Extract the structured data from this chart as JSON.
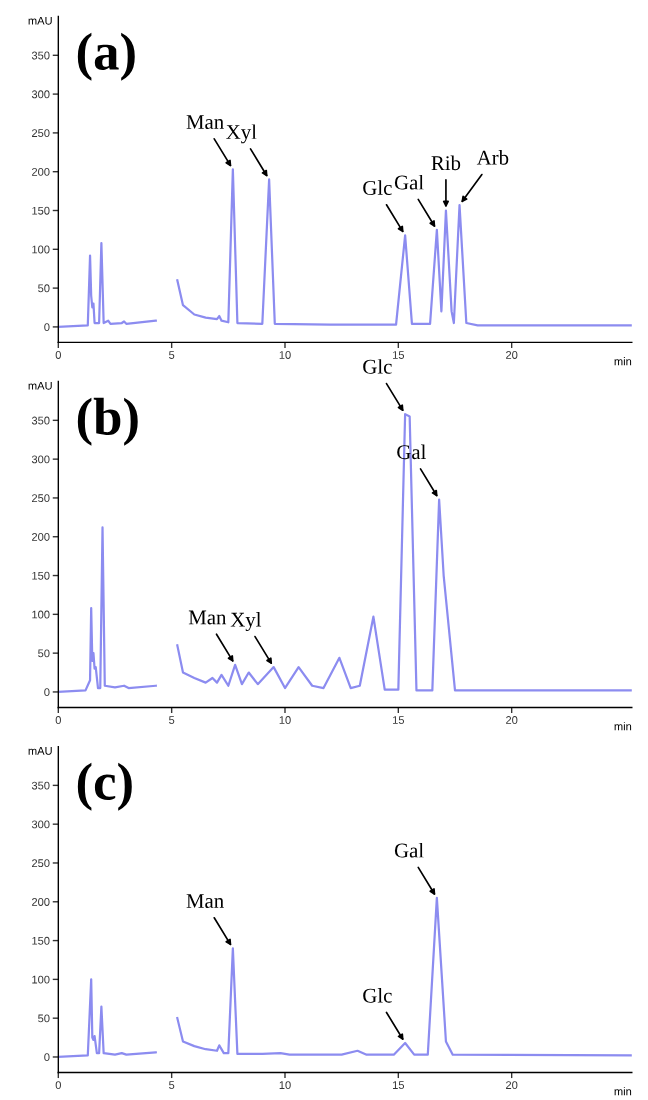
{
  "chart_data": [
    {
      "type": "line",
      "title": "(a)",
      "xlabel": "min",
      "ylabel": "mAU",
      "xlim": [
        0,
        25.3
      ],
      "ylim": [
        -20,
        400
      ],
      "xticks": [
        0,
        5,
        10,
        15,
        20
      ],
      "yticks": [
        0,
        50,
        100,
        150,
        200,
        250,
        300,
        350
      ],
      "grid": false,
      "legend": false,
      "line_style": "solid",
      "marker": "none",
      "series": [
        {
          "color": "#8c8cf0",
          "x": [
            0,
            1.3,
            1.4,
            1.45,
            1.5,
            1.55,
            1.6,
            1.8,
            1.9,
            2.0,
            2.2,
            2.3,
            2.8,
            2.9,
            3.0,
            4.3,
            4.45,
            4.55,
            5.15,
            5.25,
            5.5,
            6.0,
            6.5,
            7.0,
            7.1,
            7.2,
            7.5,
            7.7,
            7.9,
            9.0,
            9.3,
            9.55,
            12.0,
            14.9,
            15.3,
            15.6,
            16.4,
            16.7,
            16.9,
            17.1,
            17.35,
            17.45,
            17.7,
            18.0,
            18.5,
            25.3
          ],
          "values": [
            0,
            2,
            92,
            40,
            25,
            30,
            5,
            5,
            108,
            5,
            8,
            4,
            5,
            7,
            4,
            8,
            null,
            null,
            null,
            60,
            28,
            16,
            12,
            10,
            14,
            8,
            6,
            203,
            5,
            4,
            190,
            4,
            3,
            3,
            118,
            4,
            4,
            125,
            20,
            150,
            20,
            5,
            157,
            5,
            2,
            2
          ]
        }
      ],
      "annotations": [
        {
          "text": "Man",
          "x": 7.7,
          "y": 203
        },
        {
          "text": "Xyl",
          "x": 9.3,
          "y": 190
        },
        {
          "text": "Glc",
          "x": 15.3,
          "y": 118
        },
        {
          "text": "Gal",
          "x": 16.7,
          "y": 125
        },
        {
          "text": "Rib",
          "x": 17.1,
          "y": 150
        },
        {
          "text": "Arb",
          "x": 17.7,
          "y": 157
        }
      ]
    },
    {
      "type": "line",
      "title": "(b)",
      "xlabel": "min",
      "ylabel": "mAU",
      "xlim": [
        0,
        25.3
      ],
      "ylim": [
        -20,
        400
      ],
      "xticks": [
        0,
        5,
        10,
        15,
        20
      ],
      "yticks": [
        0,
        50,
        100,
        150,
        200,
        250,
        300,
        350
      ],
      "grid": false,
      "legend": false,
      "line_style": "solid",
      "marker": "none",
      "series": [
        {
          "color": "#8c8cf0",
          "x": [
            0,
            1.2,
            1.4,
            1.45,
            1.5,
            1.55,
            1.6,
            1.65,
            1.75,
            1.85,
            1.95,
            2.05,
            2.5,
            2.9,
            3.1,
            4.3,
            4.45,
            4.55,
            5.15,
            5.25,
            5.5,
            6.0,
            6.5,
            6.8,
            7.0,
            7.2,
            7.5,
            7.8,
            8.1,
            8.4,
            8.8,
            9.5,
            10.0,
            10.6,
            11.2,
            11.7,
            12.4,
            12.9,
            13.3,
            13.9,
            14.4,
            15.0,
            15.3,
            15.5,
            15.8,
            16.5,
            16.8,
            17.0,
            17.5,
            25.3
          ],
          "values": [
            0,
            2,
            15,
            108,
            40,
            50,
            30,
            32,
            5,
            5,
            212,
            8,
            6,
            8,
            5,
            8,
            null,
            null,
            null,
            60,
            25,
            18,
            12,
            18,
            12,
            22,
            8,
            35,
            10,
            25,
            10,
            32,
            5,
            32,
            8,
            5,
            44,
            5,
            8,
            97,
            3,
            3,
            358,
            355,
            2,
            2,
            248,
            150,
            2,
            2
          ]
        }
      ],
      "annotations": [
        {
          "text": "Man",
          "x": 7.8,
          "y": 35
        },
        {
          "text": "Xyl",
          "x": 9.5,
          "y": 32
        },
        {
          "text": "Glc",
          "x": 15.3,
          "y": 358
        },
        {
          "text": "Gal",
          "x": 16.8,
          "y": 248
        }
      ]
    },
    {
      "type": "line",
      "title": "(c)",
      "xlabel": "min",
      "ylabel": "mAU",
      "xlim": [
        0,
        25.3
      ],
      "ylim": [
        -20,
        400
      ],
      "xticks": [
        0,
        5,
        10,
        15,
        20
      ],
      "yticks": [
        0,
        50,
        100,
        150,
        200,
        250,
        300,
        350
      ],
      "grid": false,
      "legend": false,
      "line_style": "solid",
      "marker": "none",
      "series": [
        {
          "color": "#8c8cf0",
          "x": [
            0,
            1.3,
            1.45,
            1.5,
            1.55,
            1.6,
            1.7,
            1.8,
            1.9,
            2.0,
            2.5,
            2.8,
            3.0,
            4.3,
            4.45,
            4.55,
            5.15,
            5.25,
            5.5,
            6.0,
            6.5,
            7.0,
            7.1,
            7.3,
            7.5,
            7.7,
            7.9,
            9.0,
            9.8,
            10.2,
            12.5,
            13.2,
            13.6,
            14.8,
            15.3,
            15.7,
            16.3,
            16.7,
            17.1,
            17.4,
            25.3
          ],
          "values": [
            0,
            2,
            100,
            25,
            22,
            27,
            5,
            5,
            65,
            5,
            3,
            5,
            3,
            6,
            null,
            null,
            null,
            50,
            20,
            14,
            10,
            8,
            15,
            5,
            5,
            140,
            4,
            4,
            5,
            3,
            3,
            8,
            3,
            3,
            18,
            3,
            3,
            205,
            20,
            3,
            2
          ]
        }
      ],
      "annotations": [
        {
          "text": "Man",
          "x": 7.7,
          "y": 140
        },
        {
          "text": "Glc",
          "x": 15.3,
          "y": 18
        },
        {
          "text": "Gal",
          "x": 16.7,
          "y": 205
        }
      ]
    }
  ]
}
